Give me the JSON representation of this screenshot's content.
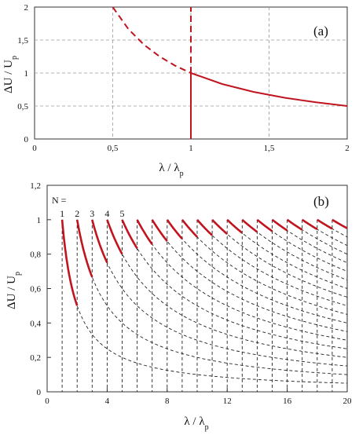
{
  "chart_data": [
    {
      "type": "line",
      "panel_label": "(a)",
      "xlabel": "λ / λ",
      "xlabel_sub": "p",
      "ylabel": "ΔU / U",
      "ylabel_sub": "p",
      "xlim": [
        0,
        2
      ],
      "ylim": [
        0,
        2
      ],
      "x_ticks": [
        0,
        0.5,
        1,
        1.5,
        2
      ],
      "x_tick_labels": [
        "0",
        "0,5",
        "1",
        "1,5",
        "2"
      ],
      "y_ticks": [
        0,
        0.5,
        1,
        1.5,
        2
      ],
      "y_tick_labels": [
        "0",
        "0,5",
        "1",
        "1,5",
        "2"
      ],
      "grid": true,
      "color": "#c0151f",
      "series": [
        {
          "style": "dashed",
          "x": [
            0.5,
            0.6,
            0.7,
            0.8,
            0.9,
            1.0
          ],
          "y": [
            2.0,
            1.667,
            1.429,
            1.25,
            1.111,
            1.0
          ]
        },
        {
          "style": "solid",
          "x": [
            1.0,
            1.2,
            1.4,
            1.6,
            1.8,
            2.0
          ],
          "y": [
            1.0,
            0.833,
            0.714,
            0.625,
            0.556,
            0.5
          ]
        },
        {
          "style": "solid",
          "x": [
            1.0,
            1.0
          ],
          "y": [
            0,
            1.0
          ]
        },
        {
          "style": "dashed",
          "x": [
            1.0,
            1.0
          ],
          "y": [
            1.0,
            2.0
          ]
        }
      ]
    },
    {
      "type": "line",
      "panel_label": "(b)",
      "xlabel": "λ / λ",
      "xlabel_sub": "p",
      "ylabel": "ΔU / U",
      "ylabel_sub": "p",
      "xlim": [
        0,
        20
      ],
      "ylim": [
        0,
        1.2
      ],
      "x_ticks": [
        0,
        4,
        8,
        12,
        16,
        20
      ],
      "x_tick_labels": [
        "0",
        "4",
        "8",
        "12",
        "16",
        "20"
      ],
      "y_ticks": [
        0,
        0.2,
        0.4,
        0.6,
        0.8,
        1.0,
        1.2
      ],
      "y_tick_labels": [
        "0",
        "0,2",
        "0,4",
        "0,6",
        "0,8",
        "1",
        "1,2"
      ],
      "grid": false,
      "n_prefix": "N =",
      "n_labels": [
        "1",
        "2",
        "3",
        "4",
        "5"
      ],
      "curve_rule": "ΔU/U_p = N / λ for λ ≥ N (dashed); envelope solid from λ = N to N+1; vertical dashed lines at λ = N",
      "n_values": [
        1,
        2,
        3,
        4,
        5,
        6,
        7,
        8,
        9,
        10,
        11,
        12,
        13,
        14,
        15,
        16,
        17,
        18,
        19,
        20
      ],
      "envelope_color": "#c0151f",
      "curve_color": "#222222"
    }
  ]
}
